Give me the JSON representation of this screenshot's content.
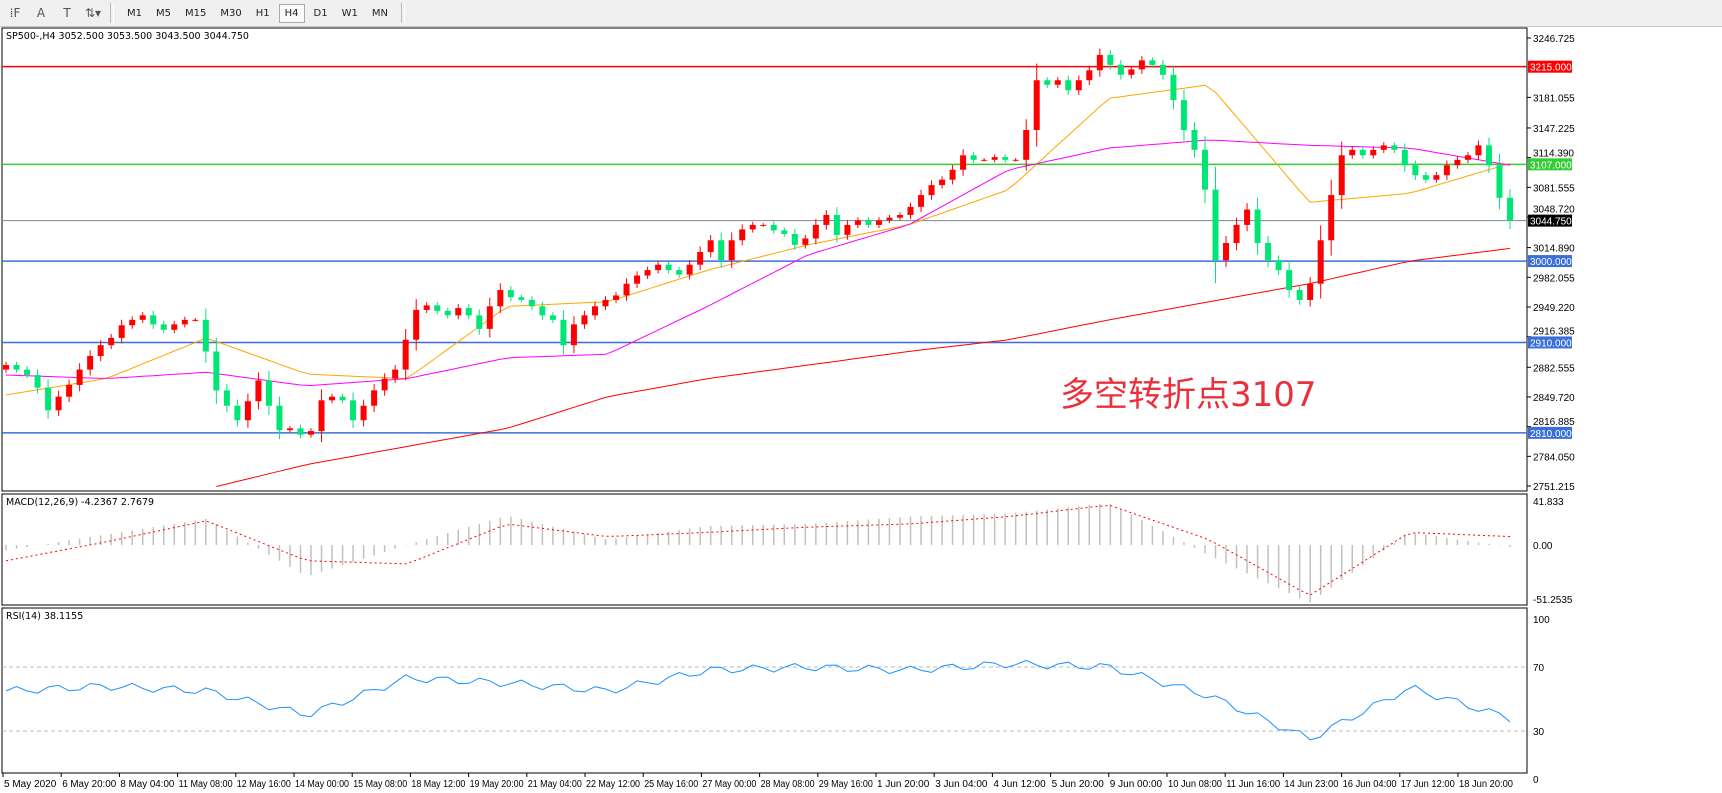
{
  "toolbar": {
    "tools": [
      {
        "icon": "grid-f-icon",
        "glyph": "⁞F"
      },
      {
        "icon": "text-icon",
        "glyph": "A"
      },
      {
        "icon": "text-label-icon",
        "glyph": "T"
      },
      {
        "icon": "arrows-dropdown-icon",
        "glyph": "⇅▾"
      }
    ],
    "timeframes": [
      "M1",
      "M5",
      "M15",
      "M30",
      "H1",
      "H4",
      "D1",
      "W1",
      "MN"
    ],
    "active_timeframe": "H4"
  },
  "header": {
    "title": "SP500-,H4  3052.500 3053.500 3043.500 3044.750"
  },
  "annotation": "多空转折点3107",
  "colors": {
    "bull": "#ff0000",
    "bear": "#00e676",
    "ma_fast": "#ffa500",
    "ma_mid": "#ff00ff",
    "ma_slow": "#ff0000",
    "resistance": "#ff0000",
    "pivot": "#33cc33",
    "support": "#3a6fd8",
    "macd_hist": "#c0c0c0",
    "macd_signal": "#ff0000",
    "rsi": "#1e90ff"
  },
  "chart_data": [
    {
      "type": "candlestick",
      "symbol": "SP500-",
      "timeframe": "H4",
      "ylim": [
        2751.215,
        3246.725
      ],
      "y_ticks": [
        "3246.725",
        "3181.055",
        "3147.225",
        "3114.390",
        "3081.555",
        "3048.720",
        "3014.890",
        "2982.055",
        "2949.220",
        "2916.385",
        "2882.555",
        "2849.720",
        "2816.885",
        "2784.050",
        "2751.215"
      ],
      "first_open": 2880,
      "closes": [
        2885,
        2880,
        2874,
        2860,
        2835,
        2850,
        2863,
        2880,
        2895,
        2907,
        2915,
        2929,
        2935,
        2940,
        2930,
        2924,
        2930,
        2935,
        2935,
        2900,
        2857,
        2840,
        2824,
        2845,
        2868,
        2840,
        2813,
        2815,
        2808,
        2812,
        2846,
        2850,
        2846,
        2824,
        2840,
        2857,
        2870,
        2880,
        2913,
        2946,
        2951,
        2945,
        2940,
        2948,
        2940,
        2925,
        2950,
        2968,
        2960,
        2957,
        2950,
        2940,
        2935,
        2907,
        2930,
        2940,
        2950,
        2957,
        2962,
        2975,
        2984,
        2990,
        2996,
        2990,
        2985,
        2996,
        3010,
        3023,
        3001,
        3023,
        3035,
        3040,
        3040,
        3034,
        3030,
        3018,
        3025,
        3040,
        3051,
        3029,
        3040,
        3045,
        3040,
        3045,
        3048,
        3051,
        3060,
        3073,
        3084,
        3090,
        3101,
        3117,
        3112,
        3112,
        3115,
        3112,
        3112,
        3145,
        3200,
        3195,
        3200,
        3189,
        3200,
        3211,
        3228,
        3217,
        3206,
        3212,
        3222,
        3217,
        3206,
        3178,
        3145,
        3123,
        3079,
        3001,
        3020,
        3040,
        3057,
        3020,
        3001,
        2990,
        2968,
        2957,
        2975,
        3023,
        3073,
        3117,
        3123,
        3117,
        3123,
        3128,
        3123,
        3106,
        3095,
        3090,
        3095,
        3106,
        3112,
        3117,
        3128,
        3106,
        3070,
        3045
      ],
      "last_price": {
        "value": 3044.75,
        "label": "3044.750"
      },
      "moving_averages": [
        {
          "key": "ma_fast",
          "values": [
            2852,
            2870,
            2915,
            2875,
            2870,
            2950,
            2955,
            2990,
            3018,
            3040,
            3079,
            3180,
            3195,
            3065,
            3075,
            3108
          ]
        },
        {
          "key": "ma_mid",
          "values": [
            2874,
            2870,
            2877,
            2862,
            2870,
            2893,
            2897,
            2950,
            3007,
            3040,
            3101,
            3125,
            3134,
            3128,
            3125,
            3106
          ]
        },
        {
          "key": "ma_slow",
          "values": [
            null,
            null,
            2748,
            2775,
            2795,
            2815,
            2850,
            2870,
            2885,
            2900,
            2913,
            2935,
            2955,
            2975,
            3000,
            3014
          ]
        }
      ],
      "levels": [
        {
          "value": 3215,
          "label": "3215.000",
          "kind": "resistance"
        },
        {
          "value": 3107,
          "label": "3107.000",
          "kind": "pivot"
        },
        {
          "value": 3000,
          "label": "3000.000",
          "kind": "support"
        },
        {
          "value": 2910,
          "label": "2910.000",
          "kind": "support"
        },
        {
          "value": 2810,
          "label": "2810.000",
          "kind": "support"
        }
      ],
      "x_ticks": [
        "5 May 2020",
        "6 May 20:00",
        "8 May 04:00",
        "11 May 08:00",
        "12 May 16:00",
        "14 May 00:00",
        "15 May 08:00",
        "18 May 12:00",
        "19 May 20:00",
        "21 May 04:00",
        "22 May 12:00",
        "25 May 16:00",
        "27 May 00:00",
        "28 May 08:00",
        "29 May 16:00",
        "1 Jun 20:00",
        "3 Jun 04:00",
        "4 Jun 12:00",
        "5 Jun 20:00",
        "9 Jun 00:00",
        "10 Jun 08:00",
        "11 Jun 16:00",
        "14 Jun 23:00",
        "16 Jun 04:00",
        "17 Jun 12:00",
        "18 Jun 20:00"
      ]
    },
    {
      "type": "bar+line",
      "label": "MACD(12,26,9) -4.2367 2.7679",
      "ylim": [
        -51.2535,
        41.833
      ],
      "y_ticks": [
        "41.833",
        "0.00",
        "-51.2535"
      ],
      "histogram": [
        -5,
        10,
        25,
        -30,
        0,
        28,
        5,
        18,
        20,
        27,
        30,
        40,
        -10,
        -55,
        12,
        -2
      ],
      "signal": [
        -15,
        3,
        23,
        -15,
        -18,
        20,
        8,
        12,
        17,
        20,
        27,
        38,
        5,
        -48,
        12,
        8
      ]
    },
    {
      "type": "line",
      "label": "RSI(14) 38.1155",
      "ylim": [
        0,
        100
      ],
      "y_ticks": [
        "100",
        "70",
        "30",
        "0"
      ],
      "levels": [
        70,
        30
      ],
      "values": [
        55,
        58,
        55,
        40,
        63,
        60,
        55,
        68,
        70,
        68,
        72,
        70,
        52,
        25,
        57,
        38
      ]
    }
  ]
}
